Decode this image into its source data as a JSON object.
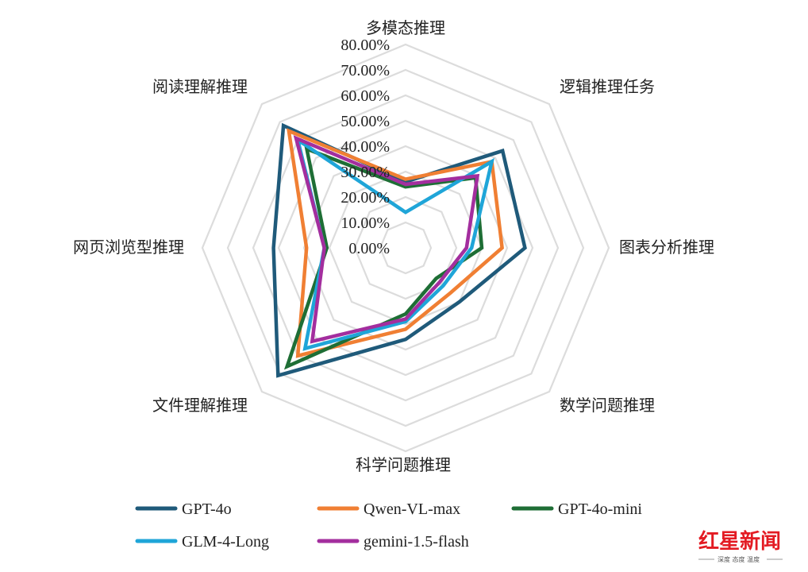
{
  "chart_data": {
    "type": "radar",
    "axes": [
      "多模态推理",
      "逻辑推理任务",
      "图表分析推理",
      "数学问题推理",
      "科学问题推理",
      "文件理解推理",
      "网页浏览型推理",
      "阅读理解推理"
    ],
    "ticks": [
      "0.00%",
      "10.00%",
      "20.00%",
      "30.00%",
      "40.00%",
      "50.00%",
      "60.00%",
      "70.00%",
      "80.00%"
    ],
    "rlim": [
      0,
      80
    ],
    "grid": true,
    "legend_position": "bottom",
    "series": [
      {
        "name": "GPT-4o",
        "color": "#1f5a7a",
        "values": [
          26,
          54,
          47,
          30,
          36,
          71,
          52,
          68
        ]
      },
      {
        "name": "Qwen-VL-max",
        "color": "#f07f33",
        "values": [
          27,
          48,
          38,
          25,
          32,
          60,
          39,
          65
        ]
      },
      {
        "name": "GPT-4o-mini",
        "color": "#1e6e35",
        "values": [
          24,
          39,
          30,
          17,
          26,
          66,
          31,
          55
        ]
      },
      {
        "name": "GLM-4-Long",
        "color": "#1fa5d8",
        "values": [
          14,
          48,
          26,
          21,
          29,
          56,
          32,
          60
        ]
      },
      {
        "name": "gemini-1.5-flash",
        "color": "#a32e9e",
        "values": [
          25,
          40,
          24,
          19,
          28,
          52,
          32,
          61
        ]
      }
    ]
  },
  "watermark": {
    "brand": "红星新闻",
    "slogan": "深度 态度 温度"
  }
}
